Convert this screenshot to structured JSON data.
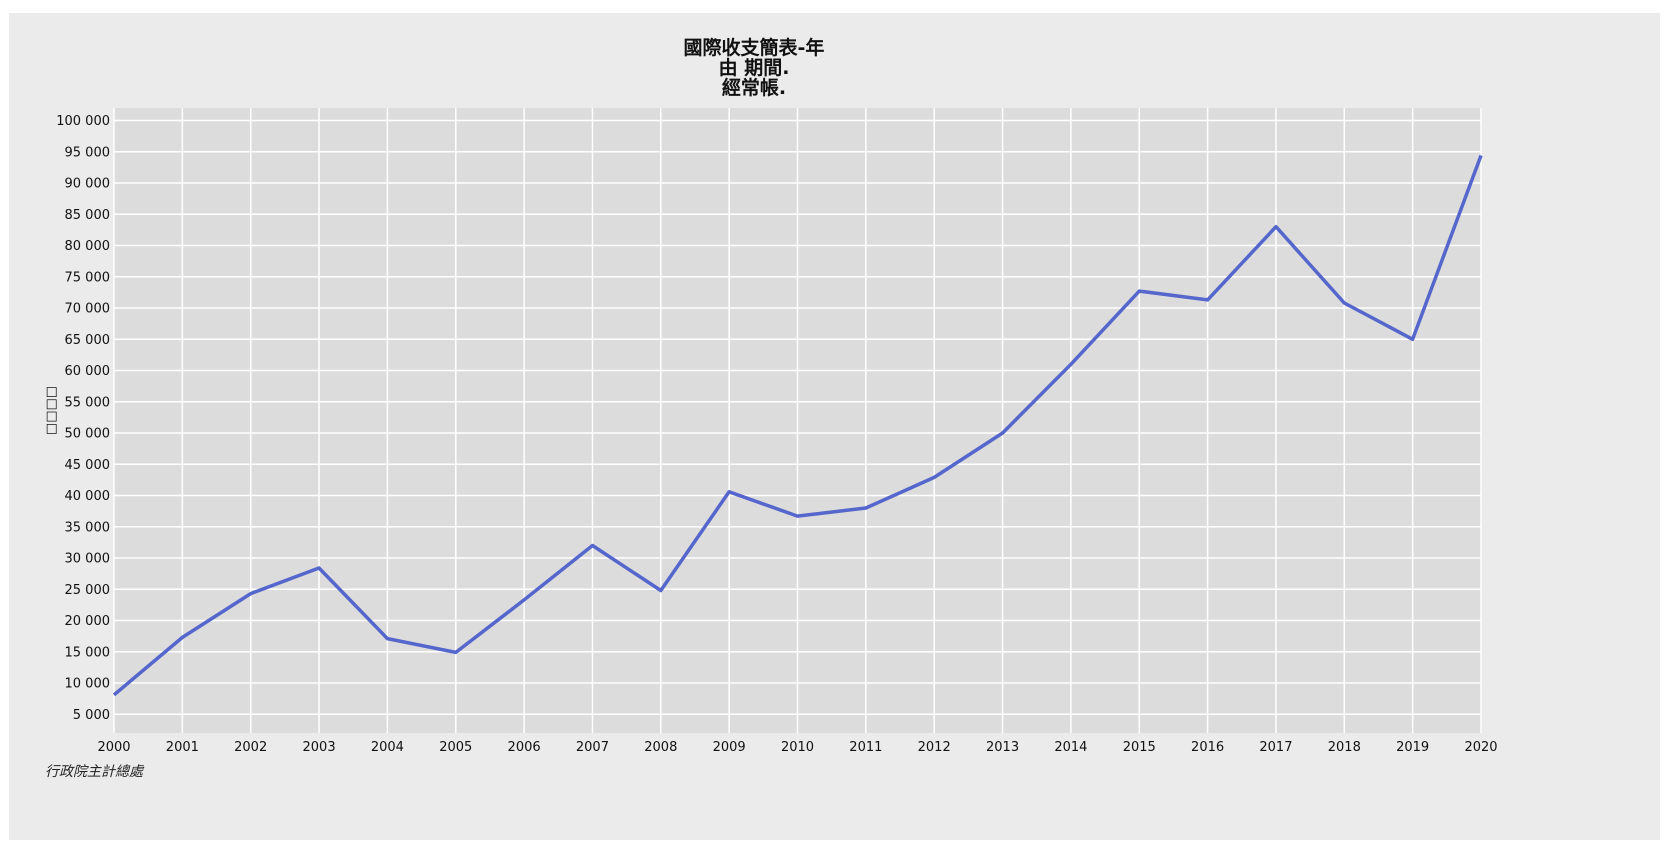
{
  "chart_data": {
    "type": "line",
    "title": [
      "國際收支簡表-年",
      "由 期間.",
      "經常帳."
    ],
    "ylabel": "□□□□",
    "xlabel": "",
    "source": "行政院主計總處",
    "x": [
      "2000",
      "2001",
      "2002",
      "2003",
      "2004",
      "2005",
      "2006",
      "2007",
      "2008",
      "2009",
      "2010",
      "2011",
      "2012",
      "2013",
      "2014",
      "2015",
      "2016",
      "2017",
      "2018",
      "2019",
      "2020"
    ],
    "series": [
      {
        "color": "#5566cc",
        "values": [
          8100,
          17300,
          24300,
          28400,
          17100,
          14900,
          23300,
          32000,
          24800,
          40600,
          36700,
          38000,
          42900,
          50000,
          61000,
          72700,
          71300,
          83000,
          70800,
          65000,
          94400
        ]
      }
    ],
    "ylim": [
      2000,
      102000
    ],
    "yticks": [
      5000,
      10000,
      15000,
      20000,
      25000,
      30000,
      35000,
      40000,
      45000,
      50000,
      55000,
      60000,
      65000,
      70000,
      75000,
      80000,
      85000,
      90000,
      95000,
      100000
    ],
    "ytick_labels": [
      "5 000",
      "10 000",
      "15 000",
      "20 000",
      "25 000",
      "30 000",
      "35 000",
      "40 000",
      "45 000",
      "50 000",
      "55 000",
      "60 000",
      "65 000",
      "70 000",
      "75 000",
      "80 000",
      "85 000",
      "90 000",
      "95 000",
      "100 000"
    ],
    "grid": true,
    "colors": {
      "plot_bg": "#dcdcdc",
      "panel_bg": "#ebebeb",
      "grid": "#ffffff",
      "line": "#5566cc"
    }
  }
}
